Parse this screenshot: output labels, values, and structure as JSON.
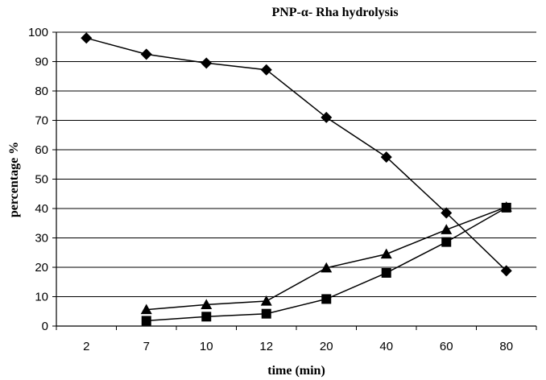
{
  "chart_data": {
    "type": "line",
    "title": "PNP-α- Rha hydrolysis",
    "xlabel": "time  (min)",
    "ylabel": "percentage  %",
    "categories": [
      "2",
      "7",
      "10",
      "12",
      "20",
      "40",
      "60",
      "80"
    ],
    "ylim": [
      0,
      100
    ],
    "yticks": [
      0,
      10,
      20,
      30,
      40,
      50,
      60,
      70,
      80,
      90,
      100
    ],
    "grid": true,
    "legend": "none",
    "series": [
      {
        "marker": "diamond",
        "values": [
          98,
          92.5,
          89.5,
          87.2,
          71,
          57.5,
          38.5,
          18.8
        ]
      },
      {
        "marker": "triangle",
        "values": [
          null,
          5.6,
          7.3,
          8.5,
          19.8,
          24.5,
          32.8,
          40.5
        ]
      },
      {
        "marker": "square",
        "values": [
          null,
          1.8,
          3.2,
          4.2,
          9.2,
          18.1,
          28.6,
          40.3
        ]
      }
    ],
    "colors": {
      "line": "#000000",
      "marker": "#000000",
      "grid": "#000000",
      "background": "#ffffff"
    }
  }
}
